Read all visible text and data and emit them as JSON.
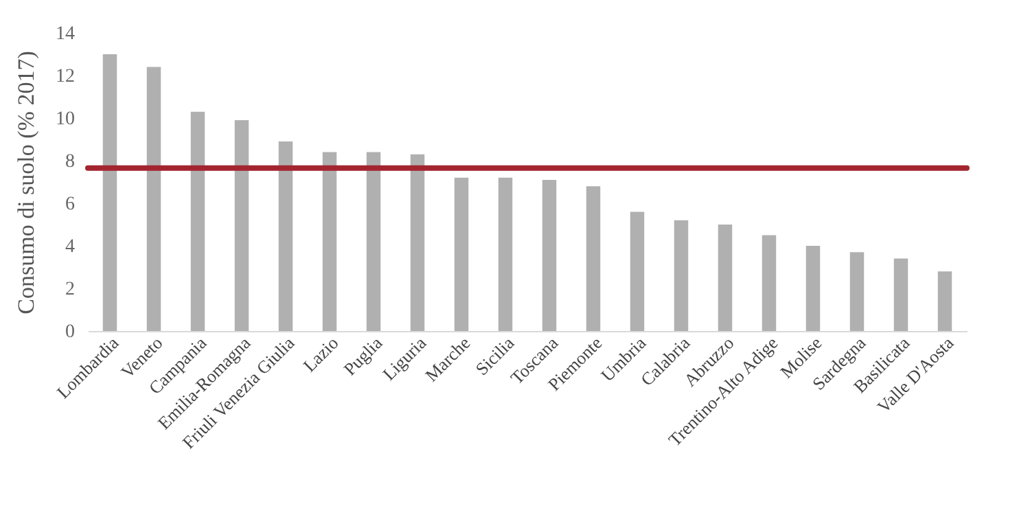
{
  "chart_data": {
    "type": "bar",
    "ylabel": "Consumo di suolo (% 2017)",
    "categories": [
      "Lombardia",
      "Veneto",
      "Campania",
      "Emilia-Romagna",
      "Friuli Venezia Giulia",
      "Lazio",
      "Puglia",
      "Liguria",
      "Marche",
      "Sicilia",
      "Toscana",
      "Piemonte",
      "Umbria",
      "Calabria",
      "Abruzzo",
      "Trentino-Alto Adige",
      "Molise",
      "Sardegna",
      "Basilicata",
      "Valle D'Aosta"
    ],
    "values": [
      13.0,
      12.4,
      10.3,
      9.9,
      8.9,
      8.4,
      8.4,
      8.3,
      7.2,
      7.2,
      7.1,
      6.8,
      5.6,
      5.2,
      5.0,
      4.5,
      4.0,
      3.7,
      3.4,
      2.8
    ],
    "color": "#b0b0b0",
    "ylim": [
      0,
      14
    ],
    "yticks": [
      0,
      2,
      4,
      6,
      8,
      10,
      12,
      14
    ],
    "grid": false,
    "ref_lines": [
      {
        "axis": "y",
        "value": 7.65,
        "color": "#a32530",
        "line_style": "solid"
      }
    ]
  }
}
